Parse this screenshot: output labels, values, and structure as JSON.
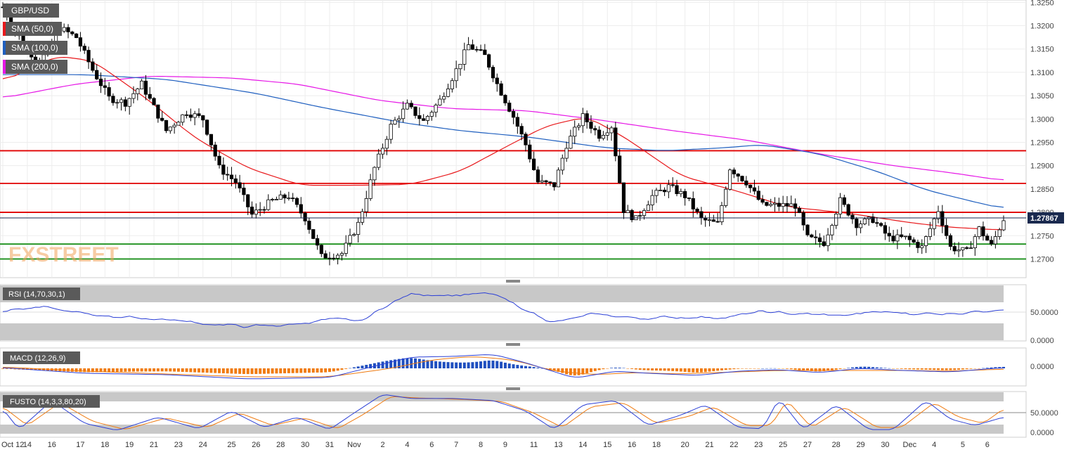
{
  "watermark": "FXSTREET",
  "colors": {
    "sma50": "#e8191c",
    "sma100": "#1f5fbf",
    "sma200": "#e617e6",
    "resistance": "#e00000",
    "support": "#1a8f1a",
    "rsi_line": "#2b3fd6",
    "macd_line": "#2b3fd6",
    "macd_signal": "#f07b10",
    "macd_hist_pos": "#1f4fbf",
    "macd_hist_neg": "#f07b10",
    "fusto_k": "#2b3fd6",
    "fusto_d": "#f07b10",
    "label_bg": "#5a5a5a",
    "price_tag_bg": "#1a2a4f"
  },
  "main_labels": {
    "symbol": "GBP/USD",
    "sma50": "SMA (50,0)",
    "sma100": "SMA (100,0)",
    "sma200": "SMA (200,0)"
  },
  "price_axis_ticks": [
    "1.3250",
    "1.3200",
    "1.3150",
    "1.3100",
    "1.3050",
    "1.3000",
    "1.2950",
    "1.2900",
    "1.2850",
    "1.2800",
    "1.2750",
    "1.2700"
  ],
  "last_price_label": "1.27867",
  "rsi": {
    "label": "RSI (14,70,30,1)",
    "ticks": [
      "50.0000",
      "0.0000"
    ]
  },
  "macd": {
    "label": "MACD (12,26,9)",
    "ticks": [
      "0.0000"
    ]
  },
  "fusto": {
    "label": "FUSTO (14,3,3,80,20)",
    "ticks": [
      "50.0000",
      "0.0000"
    ]
  },
  "date_ticks": [
    "Oct 12",
    "14",
    "16",
    "17",
    "18",
    "19",
    "21",
    "23",
    "24",
    "25",
    "26",
    "28",
    "30",
    "31",
    "Nov",
    "2",
    "4",
    "6",
    "7",
    "8",
    "9",
    "11",
    "13",
    "14",
    "15",
    "16",
    "18",
    "20",
    "21",
    "22",
    "23",
    "25",
    "27",
    "28",
    "29",
    "30",
    "Dec",
    "4",
    "5",
    "6"
  ],
  "chart_data": {
    "type": "candlestick",
    "instrument": "GBP/USD",
    "ylim": [
      1.266,
      1.3255
    ],
    "last_price": 1.27867,
    "horizontal_levels": {
      "resistance": [
        1.2932,
        1.2862,
        1.28
      ],
      "support": [
        1.2732,
        1.27
      ]
    },
    "price_anchors": [
      [
        0,
        1.324
      ],
      [
        5,
        1.316
      ],
      [
        9,
        1.312
      ],
      [
        14,
        1.3195
      ],
      [
        18,
        1.3175
      ],
      [
        22,
        1.3105
      ],
      [
        26,
        1.3045
      ],
      [
        30,
        1.3035
      ],
      [
        34,
        1.3075
      ],
      [
        40,
        1.2975
      ],
      [
        45,
        1.3015
      ],
      [
        49,
        1.3
      ],
      [
        53,
        1.2895
      ],
      [
        57,
        1.2865
      ],
      [
        61,
        1.2795
      ],
      [
        66,
        1.2825
      ],
      [
        70,
        1.2835
      ],
      [
        74,
        1.2788
      ],
      [
        78,
        1.2705
      ],
      [
        83,
        1.2712
      ],
      [
        87,
        1.2775
      ],
      [
        91,
        1.2895
      ],
      [
        95,
        1.2985
      ],
      [
        99,
        1.3028
      ],
      [
        103,
        1.2995
      ],
      [
        107,
        1.304
      ],
      [
        111,
        1.3105
      ],
      [
        114,
        1.3158
      ],
      [
        118,
        1.3135
      ],
      [
        121,
        1.3075
      ],
      [
        125,
        1.3005
      ],
      [
        128,
        1.2945
      ],
      [
        131,
        1.2865
      ],
      [
        135,
        1.2858
      ],
      [
        138,
        1.2945
      ],
      [
        142,
        1.3005
      ],
      [
        146,
        1.2965
      ],
      [
        149,
        1.2985
      ],
      [
        152,
        1.2805
      ],
      [
        155,
        1.2785
      ],
      [
        159,
        1.2835
      ],
      [
        163,
        1.2855
      ],
      [
        167,
        1.2835
      ],
      [
        171,
        1.2785
      ],
      [
        175,
        1.2775
      ],
      [
        178,
        1.2895
      ],
      [
        182,
        1.2865
      ],
      [
        186,
        1.2815
      ],
      [
        190,
        1.2815
      ],
      [
        194,
        1.2815
      ],
      [
        197,
        1.2745
      ],
      [
        201,
        1.2735
      ],
      [
        205,
        1.2825
      ],
      [
        209,
        1.2775
      ],
      [
        213,
        1.2785
      ],
      [
        217,
        1.2745
      ],
      [
        221,
        1.2745
      ],
      [
        225,
        1.2725
      ],
      [
        229,
        1.2805
      ],
      [
        232,
        1.2725
      ],
      [
        236,
        1.2715
      ],
      [
        239,
        1.2765
      ],
      [
        242,
        1.2728
      ],
      [
        245,
        1.2786
      ]
    ],
    "sma50_anchors": [
      [
        0,
        1.308
      ],
      [
        13,
        1.3135
      ],
      [
        22,
        1.3125
      ],
      [
        35,
        1.3045
      ],
      [
        47,
        1.296
      ],
      [
        60,
        1.2895
      ],
      [
        73,
        1.2858
      ],
      [
        88,
        1.2858
      ],
      [
        100,
        1.286
      ],
      [
        112,
        1.2888
      ],
      [
        122,
        1.2935
      ],
      [
        133,
        1.2985
      ],
      [
        143,
        1.3005
      ],
      [
        152,
        1.2962
      ],
      [
        166,
        1.2878
      ],
      [
        180,
        1.2845
      ],
      [
        192,
        1.2812
      ],
      [
        207,
        1.2798
      ],
      [
        222,
        1.2778
      ],
      [
        232,
        1.2768
      ],
      [
        245,
        1.2762
      ]
    ],
    "sma100_anchors": [
      [
        0,
        1.3095
      ],
      [
        20,
        1.3095
      ],
      [
        40,
        1.3085
      ],
      [
        62,
        1.3055
      ],
      [
        78,
        1.3025
      ],
      [
        98,
        1.2992
      ],
      [
        112,
        1.2975
      ],
      [
        128,
        1.2962
      ],
      [
        148,
        1.2938
      ],
      [
        162,
        1.2932
      ],
      [
        176,
        1.2938
      ],
      [
        186,
        1.2945
      ],
      [
        200,
        1.2925
      ],
      [
        214,
        1.2888
      ],
      [
        226,
        1.2848
      ],
      [
        238,
        1.2822
      ],
      [
        245,
        1.2808
      ]
    ],
    "sma200_anchors": [
      [
        0,
        1.3045
      ],
      [
        18,
        1.3075
      ],
      [
        36,
        1.3092
      ],
      [
        56,
        1.3088
      ],
      [
        72,
        1.3075
      ],
      [
        92,
        1.304
      ],
      [
        110,
        1.3022
      ],
      [
        128,
        1.3018
      ],
      [
        146,
        1.2998
      ],
      [
        164,
        1.2975
      ],
      [
        182,
        1.2955
      ],
      [
        200,
        1.2925
      ],
      [
        218,
        1.29
      ],
      [
        232,
        1.2885
      ],
      [
        245,
        1.2868
      ]
    ],
    "rsi_anchors": [
      [
        0,
        55
      ],
      [
        10,
        60
      ],
      [
        20,
        48
      ],
      [
        30,
        42
      ],
      [
        40,
        38
      ],
      [
        50,
        30
      ],
      [
        60,
        25
      ],
      [
        70,
        28
      ],
      [
        80,
        38
      ],
      [
        88,
        35
      ],
      [
        93,
        60
      ],
      [
        100,
        85
      ],
      [
        110,
        82
      ],
      [
        120,
        85
      ],
      [
        126,
        62
      ],
      [
        135,
        32
      ],
      [
        145,
        48
      ],
      [
        155,
        40
      ],
      [
        165,
        42
      ],
      [
        178,
        42
      ],
      [
        185,
        52
      ],
      [
        195,
        48
      ],
      [
        205,
        45
      ],
      [
        215,
        52
      ],
      [
        225,
        48
      ],
      [
        235,
        50
      ],
      [
        245,
        58
      ]
    ],
    "macd_line_anchors": [
      [
        0,
        0.05
      ],
      [
        20,
        -0.35
      ],
      [
        40,
        -0.45
      ],
      [
        60,
        -0.75
      ],
      [
        80,
        -0.65
      ],
      [
        93,
        0.3
      ],
      [
        100,
        0.8
      ],
      [
        110,
        0.85
      ],
      [
        120,
        1.0
      ],
      [
        128,
        0.4
      ],
      [
        140,
        -0.7
      ],
      [
        150,
        -0.2
      ],
      [
        158,
        -0.35
      ],
      [
        170,
        -0.5
      ],
      [
        180,
        -0.2
      ],
      [
        190,
        -0.1
      ],
      [
        200,
        -0.3
      ],
      [
        210,
        0.0
      ],
      [
        220,
        -0.15
      ],
      [
        232,
        -0.25
      ],
      [
        245,
        0.05
      ]
    ],
    "macd_signal_anchors": [
      [
        0,
        0.1
      ],
      [
        20,
        -0.2
      ],
      [
        40,
        -0.4
      ],
      [
        60,
        -0.6
      ],
      [
        80,
        -0.6
      ],
      [
        95,
        0.0
      ],
      [
        105,
        0.6
      ],
      [
        115,
        0.85
      ],
      [
        125,
        0.6
      ],
      [
        135,
        -0.2
      ],
      [
        145,
        -0.45
      ],
      [
        155,
        -0.3
      ],
      [
        165,
        -0.4
      ],
      [
        175,
        -0.3
      ],
      [
        190,
        -0.15
      ],
      [
        205,
        -0.15
      ],
      [
        220,
        -0.15
      ],
      [
        232,
        -0.2
      ],
      [
        245,
        -0.05
      ]
    ],
    "fusto_k_anchors": [
      [
        0,
        60
      ],
      [
        4,
        10
      ],
      [
        12,
        80
      ],
      [
        20,
        25
      ],
      [
        28,
        8
      ],
      [
        38,
        40
      ],
      [
        48,
        12
      ],
      [
        56,
        55
      ],
      [
        64,
        15
      ],
      [
        72,
        40
      ],
      [
        80,
        10
      ],
      [
        86,
        50
      ],
      [
        93,
        95
      ],
      [
        100,
        85
      ],
      [
        110,
        85
      ],
      [
        120,
        80
      ],
      [
        128,
        55
      ],
      [
        135,
        10
      ],
      [
        142,
        70
      ],
      [
        150,
        80
      ],
      [
        158,
        20
      ],
      [
        166,
        45
      ],
      [
        172,
        70
      ],
      [
        180,
        15
      ],
      [
        186,
        12
      ],
      [
        190,
        85
      ],
      [
        196,
        10
      ],
      [
        204,
        70
      ],
      [
        212,
        10
      ],
      [
        218,
        10
      ],
      [
        226,
        80
      ],
      [
        232,
        35
      ],
      [
        238,
        20
      ],
      [
        245,
        40
      ]
    ],
    "fusto_d_anchors": [
      [
        0,
        65
      ],
      [
        6,
        20
      ],
      [
        14,
        75
      ],
      [
        22,
        30
      ],
      [
        30,
        10
      ],
      [
        40,
        38
      ],
      [
        50,
        15
      ],
      [
        58,
        50
      ],
      [
        66,
        20
      ],
      [
        74,
        38
      ],
      [
        82,
        12
      ],
      [
        88,
        45
      ],
      [
        95,
        90
      ],
      [
        102,
        86
      ],
      [
        112,
        83
      ],
      [
        122,
        78
      ],
      [
        130,
        50
      ],
      [
        137,
        15
      ],
      [
        144,
        65
      ],
      [
        152,
        75
      ],
      [
        160,
        25
      ],
      [
        168,
        42
      ],
      [
        174,
        65
      ],
      [
        182,
        20
      ],
      [
        188,
        20
      ],
      [
        192,
        80
      ],
      [
        198,
        15
      ],
      [
        206,
        65
      ],
      [
        214,
        15
      ],
      [
        220,
        15
      ],
      [
        228,
        75
      ],
      [
        234,
        40
      ],
      [
        240,
        25
      ],
      [
        245,
        60
      ]
    ],
    "macd_ylim": [
      -1.2,
      1.4
    ]
  }
}
